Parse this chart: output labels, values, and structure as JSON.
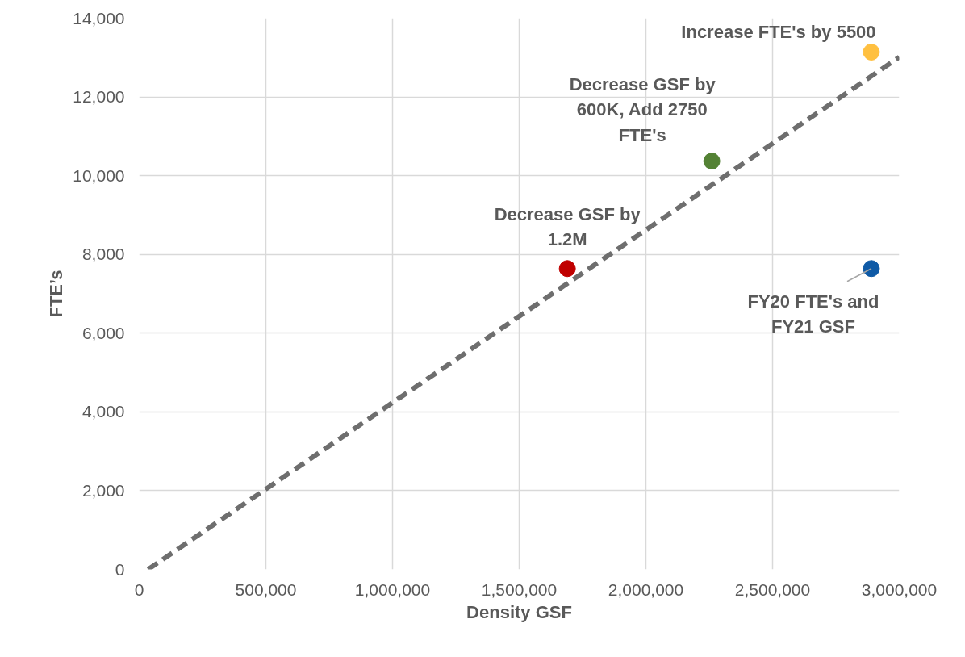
{
  "chart_data": {
    "type": "scatter",
    "xlabel": "Density GSF",
    "ylabel": "FTE’s",
    "xlim": [
      0,
      3000000
    ],
    "ylim": [
      0,
      14000
    ],
    "xticks": [
      0,
      {
        "value": 500000,
        "label": "500,000"
      },
      {
        "value": 1000000,
        "label": "1,000,000"
      },
      {
        "value": 1500000,
        "label": "1,500,000"
      },
      {
        "value": 2000000,
        "label": "2,000,000"
      },
      {
        "value": 2500000,
        "label": "2,500,000"
      },
      {
        "value": 3000000,
        "label": "3,000,000"
      }
    ],
    "yticks": [
      0,
      {
        "value": 2000,
        "label": "2,000"
      },
      {
        "value": 4000,
        "label": "4,000"
      },
      {
        "value": 6000,
        "label": "6,000"
      },
      {
        "value": 8000,
        "label": "8,000"
      },
      {
        "value": 10000,
        "label": "10,000"
      },
      {
        "value": 12000,
        "label": "12,000"
      },
      {
        "value": 14000,
        "label": "14,000"
      }
    ],
    "grid": true,
    "marker": "circle",
    "series": [
      {
        "type": "scatter",
        "x": [
          2890000,
          1690000,
          2260000,
          2890000
        ],
        "values": [
          7640,
          7640,
          10370,
          13140
        ],
        "colors": [
          "#0f5aa6",
          "#c00000",
          "#548235",
          "#ffc040"
        ]
      },
      {
        "type": "line",
        "x": [
          35000,
          3000000
        ],
        "values": [
          0,
          13010
        ],
        "color": "#6e6e6e",
        "line_style": "dashed",
        "marker": "none"
      }
    ],
    "annotations": [
      {
        "text": "Increase FTE's by 5500",
        "x": 2890000,
        "y": 13140
      },
      {
        "text": "Decrease GSF by 600K, Add 2750 FTE's",
        "x": 2260000,
        "y": 10370
      },
      {
        "text": "Decrease GSF by 1.2M",
        "x": 1690000,
        "y": 7640
      },
      {
        "text": "FY20 FTE's and FY21 GSF",
        "x": 2890000,
        "y": 7640
      }
    ]
  }
}
